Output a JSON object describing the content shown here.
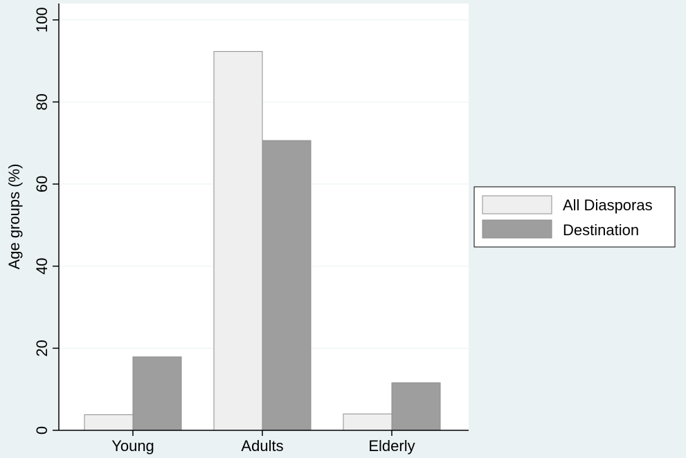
{
  "colors": {
    "background": "#eaf2f3",
    "plot_background": "#ffffff",
    "grid": "#eaf2f3",
    "axis": "#000000",
    "series_1": "#efefef",
    "series_2": "#9e9e9e",
    "bar_outline": "#8c8c8c"
  },
  "chart_data": {
    "type": "bar",
    "categories": [
      "Young",
      "Adults",
      "Elderly"
    ],
    "series": [
      {
        "name": "All Diasporas",
        "values": [
          3.8,
          92.3,
          4.0
        ],
        "color": "#efefef"
      },
      {
        "name": "Destination",
        "values": [
          17.9,
          70.6,
          11.6
        ],
        "color": "#9e9e9e"
      }
    ],
    "xlabel": "",
    "ylabel": "Age groups (%)",
    "ylim": [
      0,
      104
    ],
    "yticks": [
      0,
      20,
      40,
      60,
      80,
      100
    ],
    "ytick_labels": [
      "0",
      "20",
      "40",
      "60",
      "80",
      "100"
    ],
    "grid": true,
    "legend_position": "right"
  }
}
